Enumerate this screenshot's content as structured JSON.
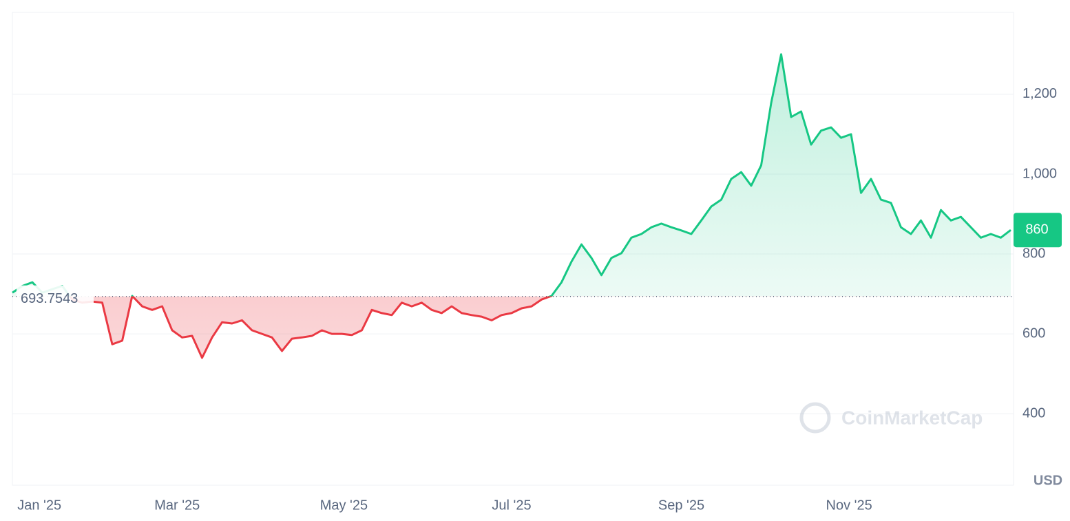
{
  "chart_data": {
    "type": "baseline-area",
    "values": [
      703,
      720,
      729,
      703,
      712,
      720,
      686,
      678,
      681,
      678,
      574,
      583,
      695,
      669,
      660,
      669,
      609,
      591,
      595,
      540,
      591,
      629,
      626,
      634,
      609,
      600,
      591,
      557,
      588,
      591,
      595,
      609,
      600,
      600,
      597,
      609,
      660,
      652,
      647,
      678,
      669,
      678,
      660,
      652,
      669,
      652,
      647,
      643,
      634,
      647,
      652,
      664,
      669,
      686,
      695,
      729,
      781,
      824,
      790,
      747,
      790,
      802,
      841,
      850,
      867,
      876,
      867,
      859,
      850,
      884,
      919,
      936,
      988,
      1005,
      971,
      1022,
      1178,
      1300,
      1143,
      1157,
      1074,
      1109,
      1117,
      1091,
      1100,
      953,
      988,
      936,
      928,
      867,
      850,
      884,
      841,
      910,
      884,
      893,
      867,
      841,
      850,
      841,
      860
    ],
    "baseline": 693.7543,
    "up_color": "#16c784",
    "down_color": "#ea3943",
    "xlim": [
      0,
      100
    ],
    "xticks": [
      {
        "value": 2.7,
        "label": "Jan '25"
      },
      {
        "value": 16.5,
        "label": "Mar '25"
      },
      {
        "value": 33.2,
        "label": "May '25"
      },
      {
        "value": 50,
        "label": "Jul '25"
      },
      {
        "value": 67,
        "label": "Sep '25"
      },
      {
        "value": 83.8,
        "label": "Nov '25"
      }
    ],
    "ylim": [
      221,
      1405
    ],
    "yticks": [
      {
        "value": 400,
        "label": "400"
      },
      {
        "value": 600,
        "label": "600"
      },
      {
        "value": 800,
        "label": "800"
      },
      {
        "value": 1000,
        "label": "1,000"
      },
      {
        "value": 1200,
        "label": "1,200"
      }
    ],
    "grid": true,
    "currency": "USD",
    "watermark": "CoinMarketCap"
  }
}
